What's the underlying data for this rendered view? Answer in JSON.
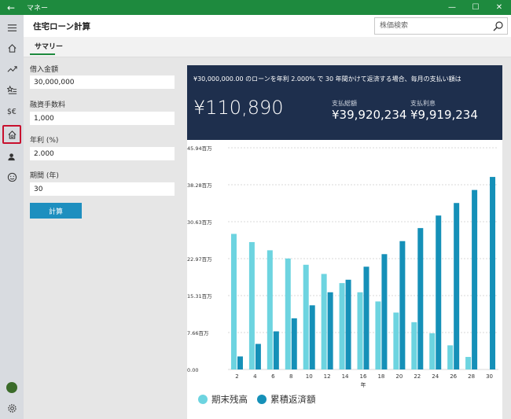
{
  "window": {
    "title": "マネー",
    "back_glyph": "←",
    "min_glyph": "—",
    "max_glyph": "☐",
    "close_glyph": "✕"
  },
  "header": {
    "title": "住宅ローン計算",
    "search_placeholder": "株価検索"
  },
  "tabs": [
    {
      "label": "サマリー",
      "active": true
    }
  ],
  "form": {
    "loan_amount": {
      "label": "借入金額",
      "value": "30,000,000"
    },
    "fee": {
      "label": "融資手数料",
      "value": "1,000"
    },
    "rate": {
      "label": "年利 (%)",
      "value": "2.000"
    },
    "term": {
      "label": "期間 (年)",
      "value": "30"
    },
    "calc_label": "計算"
  },
  "result": {
    "summary_text": "¥30,000,000.00 のローンを年利 2.000% で 30 年間かけて返済する場合、毎月の支払い額は",
    "monthly_payment": "¥110,890",
    "total_label": "支払総額",
    "total_value": "¥39,920,234",
    "interest_label": "支払利息",
    "interest_value": "¥9,919,234"
  },
  "colors": {
    "accent_green": "#1e8a3e",
    "balance": "#6dd4e0",
    "cumulative": "#1590b8",
    "panel_bg": "#1e2f4d"
  },
  "chart_data": {
    "type": "bar",
    "categories": [
      "2",
      "4",
      "6",
      "8",
      "10",
      "12",
      "14",
      "16",
      "18",
      "20",
      "22",
      "24",
      "26",
      "28",
      "30"
    ],
    "xlabel": "年",
    "ylabel": "",
    "ylim": [
      0,
      45.94
    ],
    "y_ticks": [
      {
        "value": 0,
        "label": "0.00"
      },
      {
        "value": 7.66,
        "label": "7.66百万"
      },
      {
        "value": 15.31,
        "label": "15.31百万"
      },
      {
        "value": 22.97,
        "label": "22.97百万"
      },
      {
        "value": 30.63,
        "label": "30.63百万"
      },
      {
        "value": 38.28,
        "label": "38.28百万"
      },
      {
        "value": 45.94,
        "label": "45.94百万"
      }
    ],
    "grid": true,
    "legend_position": "bottom-left",
    "series": [
      {
        "name": "期末残高",
        "color": "#6dd4e0",
        "values": [
          28.1,
          26.4,
          24.7,
          23.0,
          21.7,
          19.8,
          17.9,
          16.0,
          14.1,
          11.8,
          9.8,
          7.5,
          5.0,
          2.6,
          0.0
        ]
      },
      {
        "name": "累積返済額",
        "color": "#1590b8",
        "values": [
          2.7,
          5.3,
          7.9,
          10.6,
          13.3,
          16.0,
          18.6,
          21.3,
          23.9,
          26.6,
          29.3,
          31.9,
          34.5,
          37.2,
          39.9
        ]
      }
    ]
  }
}
